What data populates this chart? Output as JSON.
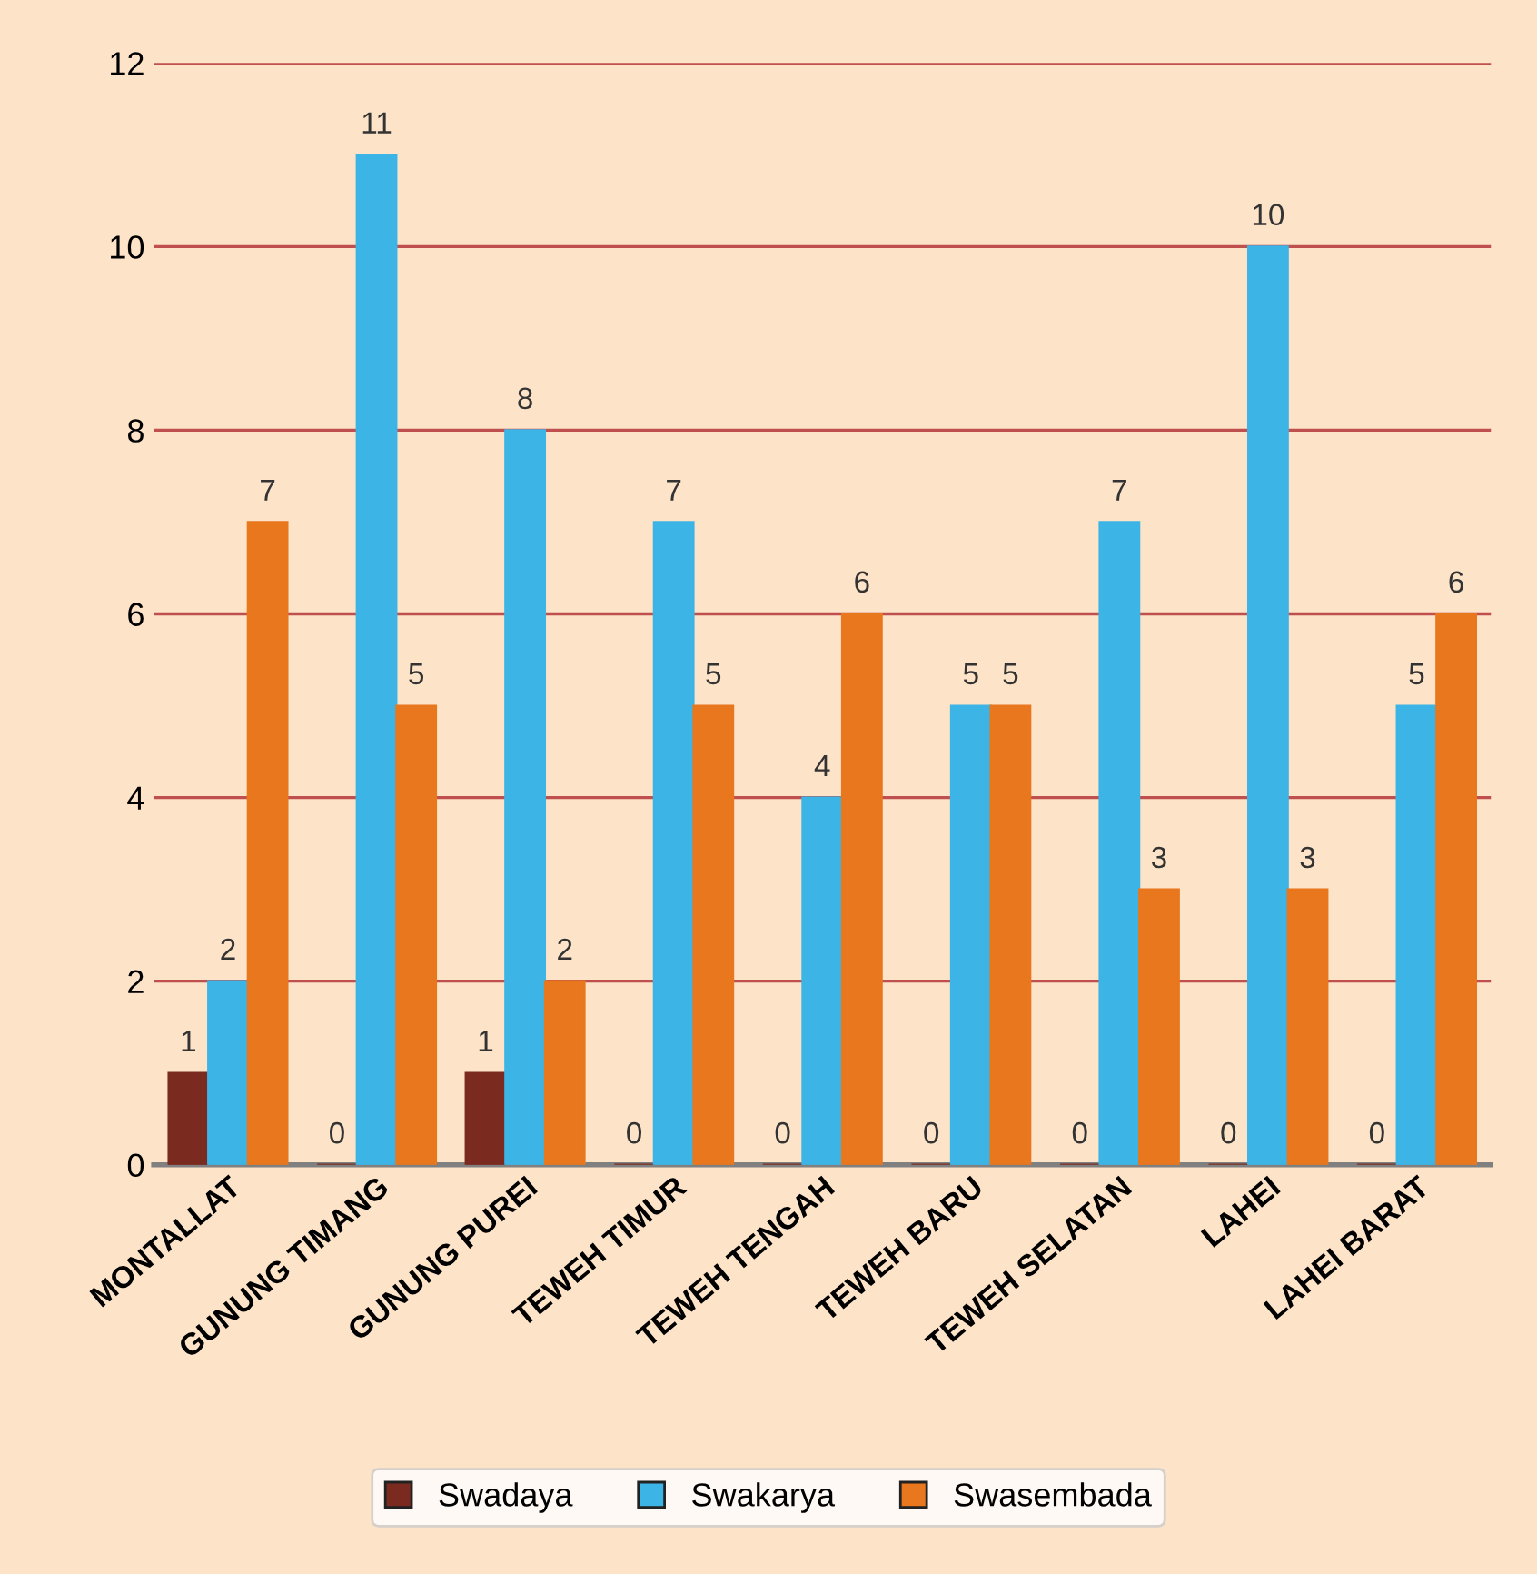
{
  "chart_data": {
    "type": "bar",
    "categories": [
      "MONTALLAT",
      "GUNUNG TIMANG",
      "GUNUNG PUREI",
      "TEWEH TIMUR",
      "TEWEH TENGAH",
      "TEWEH BARU",
      "TEWEH SELATAN",
      "LAHEI",
      "LAHEI BARAT"
    ],
    "series": [
      {
        "name": "Swadaya",
        "color": "#7b2a1f",
        "values": [
          1,
          0,
          1,
          0,
          0,
          0,
          0,
          0,
          0
        ]
      },
      {
        "name": "Swakarya",
        "color": "#3cb4e6",
        "values": [
          2,
          11,
          8,
          7,
          4,
          5,
          7,
          10,
          5
        ]
      },
      {
        "name": "Swasembada",
        "color": "#e8771e",
        "values": [
          7,
          5,
          2,
          5,
          6,
          5,
          3,
          3,
          6
        ]
      }
    ],
    "ylim": [
      0,
      12
    ],
    "yticks": [
      0,
      2,
      4,
      6,
      8,
      10,
      12
    ],
    "grid": "y",
    "legend": "bottom",
    "data_labels": true
  }
}
